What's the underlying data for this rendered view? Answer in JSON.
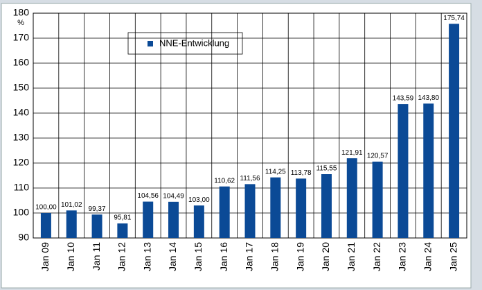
{
  "chart_data": {
    "type": "bar",
    "y_unit": "%",
    "categories": [
      "Jan 09",
      "Jan 10",
      "Jan 11",
      "Jan 12",
      "Jan 13",
      "Jan 14",
      "Jan 15",
      "Jan 16",
      "Jan 17",
      "Jan 18",
      "Jan 19",
      "Jan 20",
      "Jan 21",
      "Jan 22",
      "Jan 23",
      "Jan 24",
      "Jan 25"
    ],
    "series": [
      {
        "name": "NNE-Entwicklung",
        "color": "#0b4a96",
        "values": [
          100,
          101.02,
          99.37,
          95.81,
          104.56,
          104.49,
          103,
          110.62,
          111.56,
          114.25,
          113.78,
          115.55,
          121.91,
          120.57,
          143.59,
          143.8,
          175.74
        ],
        "value_labels": [
          "100,00",
          "101,02",
          "99,37",
          "95,81",
          "104,56",
          "104,49",
          "103,00",
          "110,62",
          "111,56",
          "114,25",
          "113,78",
          "115,55",
          "121,91",
          "120,57",
          "143,59",
          "143,80",
          "175,74"
        ]
      }
    ],
    "ylim": [
      90,
      180
    ],
    "yticks": [
      90,
      100,
      110,
      120,
      130,
      140,
      150,
      160,
      170,
      180
    ],
    "grid": true
  }
}
